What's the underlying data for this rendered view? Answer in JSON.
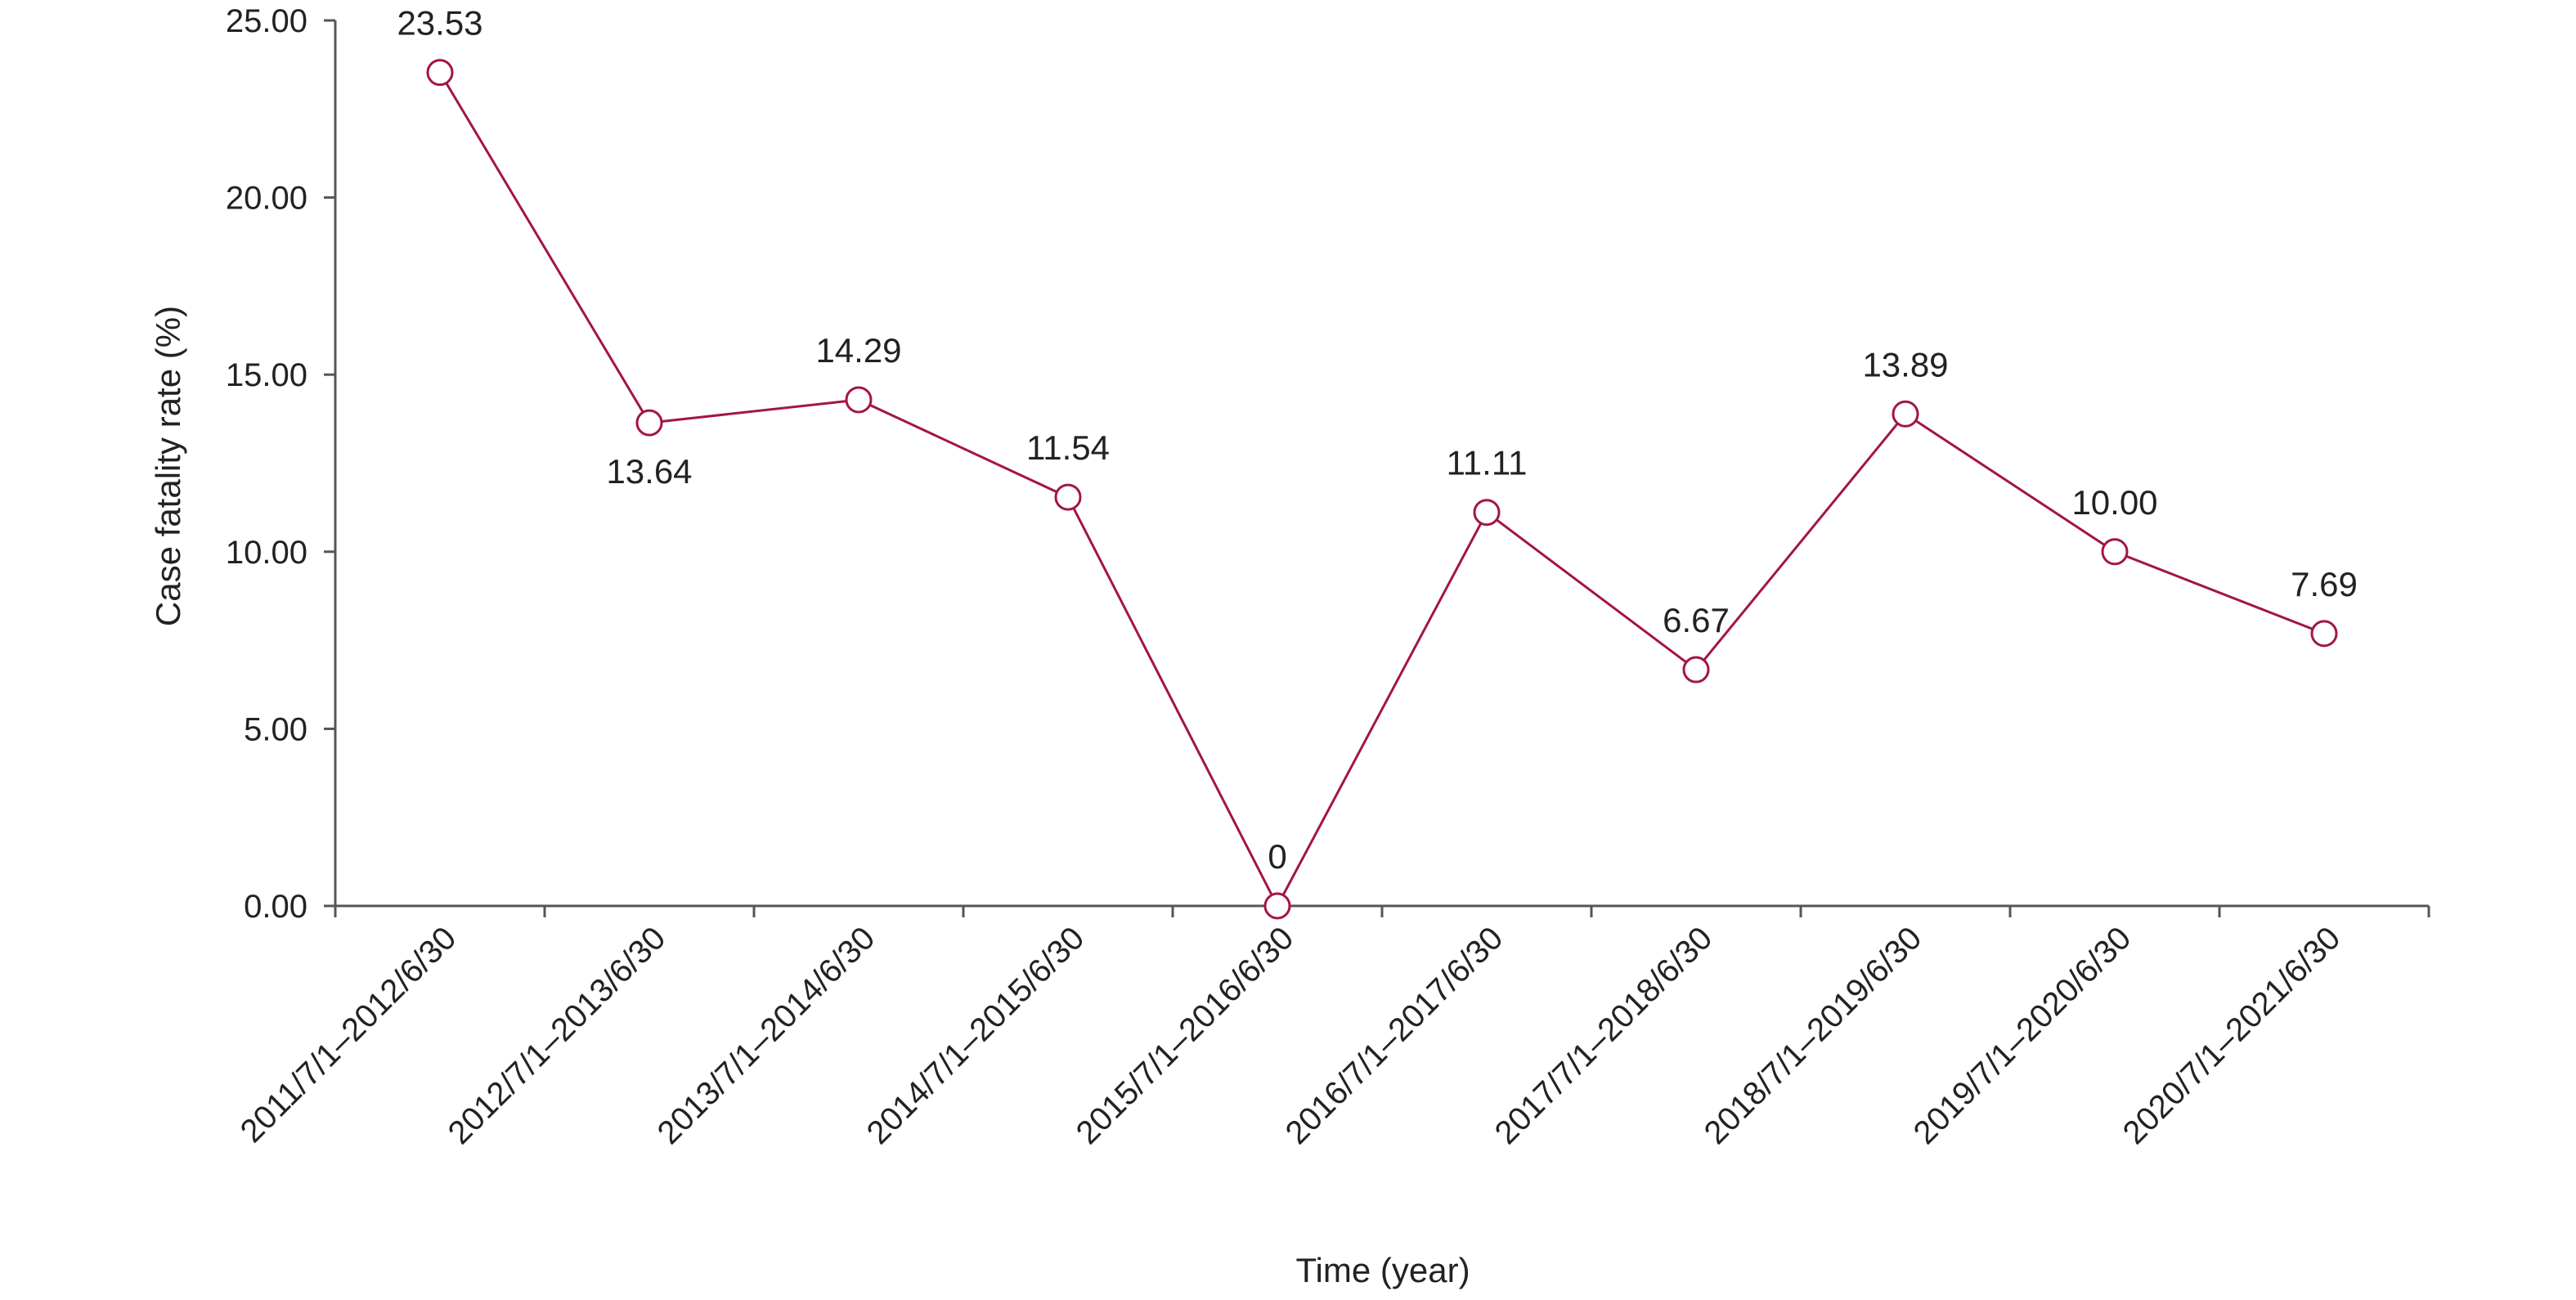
{
  "chart_data": {
    "type": "line",
    "categories": [
      "2011/7/1–2012/6/30",
      "2012/7/1–2013/6/30",
      "2013/7/1–2014/6/30",
      "2014/7/1–2015/6/30",
      "2015/7/1–2016/6/30",
      "2016/7/1–2017/6/30",
      "2017/7/1–2018/6/30",
      "2018/7/1–2019/6/30",
      "2019/7/1–2020/6/30",
      "2020/7/1–2021/6/30"
    ],
    "series": [
      {
        "values": [
          23.53,
          13.64,
          14.29,
          11.54,
          0,
          11.11,
          6.67,
          13.89,
          10.0,
          7.69
        ],
        "labels": [
          "23.53",
          "13.64",
          "14.29",
          "11.54",
          "0",
          "11.11",
          "6.67",
          "13.89",
          "10.00",
          "7.69"
        ],
        "color": "#a3144a"
      }
    ],
    "xlabel": "Time (year)",
    "ylabel": "Case fatality rate (%)",
    "ylim": [
      0,
      25
    ],
    "yticks": [
      "0.00",
      "5.00",
      "10.00",
      "15.00",
      "20.00",
      "25.00"
    ],
    "grid": false,
    "legend": "none",
    "marker": "open-circle"
  }
}
